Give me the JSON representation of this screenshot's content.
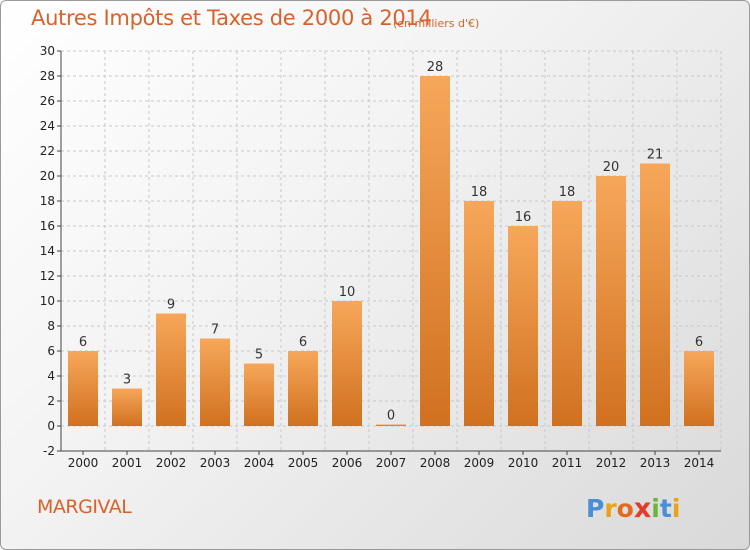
{
  "title": "Autres Impôts et Taxes de 2000 à 2014",
  "subtitle": "(en milliers d'€)",
  "commune": "MARGIVAL",
  "logo_text": "Proxiti",
  "colors": {
    "title": "#d9622b",
    "bar_light": "#f7a75a",
    "bar_dark": "#d0711f",
    "grid": "#c8c8c8"
  },
  "chart_data": {
    "type": "bar",
    "categories": [
      "2000",
      "2001",
      "2002",
      "2003",
      "2004",
      "2005",
      "2006",
      "2007",
      "2008",
      "2009",
      "2010",
      "2011",
      "2012",
      "2013",
      "2014"
    ],
    "values": [
      6,
      3,
      9,
      7,
      5,
      6,
      10,
      0,
      28,
      18,
      16,
      18,
      20,
      21,
      6
    ],
    "ylim": [
      -2,
      30
    ],
    "yticks": [
      -2,
      0,
      2,
      4,
      6,
      8,
      10,
      12,
      14,
      16,
      18,
      20,
      22,
      24,
      26,
      28,
      30
    ],
    "grid": "horizontal dashed",
    "data_labels": true
  }
}
